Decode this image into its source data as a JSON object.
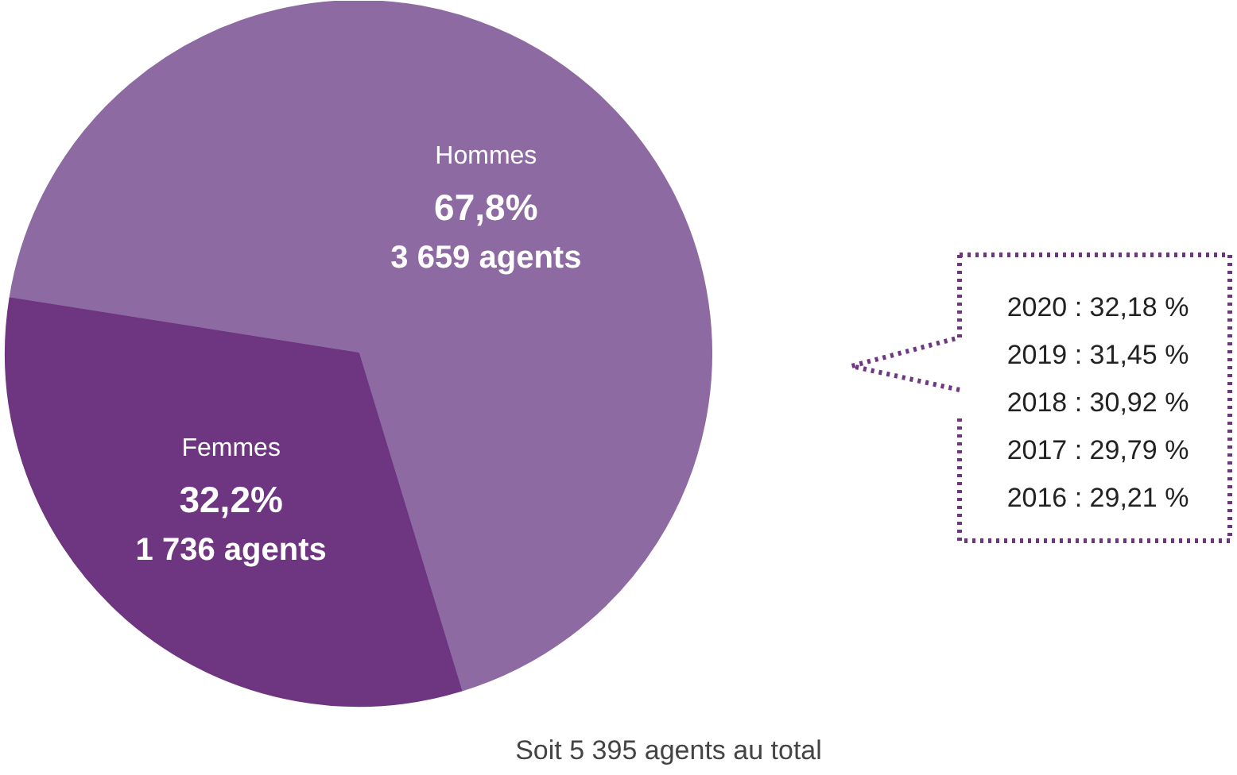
{
  "chart_data": {
    "type": "pie",
    "categories": [
      "Hommes",
      "Femmes"
    ],
    "values": [
      67.8,
      32.2
    ],
    "value_labels": [
      "67,8%",
      "32,2%"
    ],
    "colors": [
      "#8e6aa3",
      "#6e3580"
    ],
    "annotations": [
      {
        "text": "3 659 agents",
        "x": "Hommes"
      },
      {
        "text": "1 736 agents",
        "x": "Femmes"
      },
      "2020 : 32,18 %",
      "2019 : 31,45 %",
      "2018 : 30,92 %",
      "2017 : 29,79 %",
      "2016 : 29,21 %",
      "Soit 5 395 agents au total"
    ]
  }
}
